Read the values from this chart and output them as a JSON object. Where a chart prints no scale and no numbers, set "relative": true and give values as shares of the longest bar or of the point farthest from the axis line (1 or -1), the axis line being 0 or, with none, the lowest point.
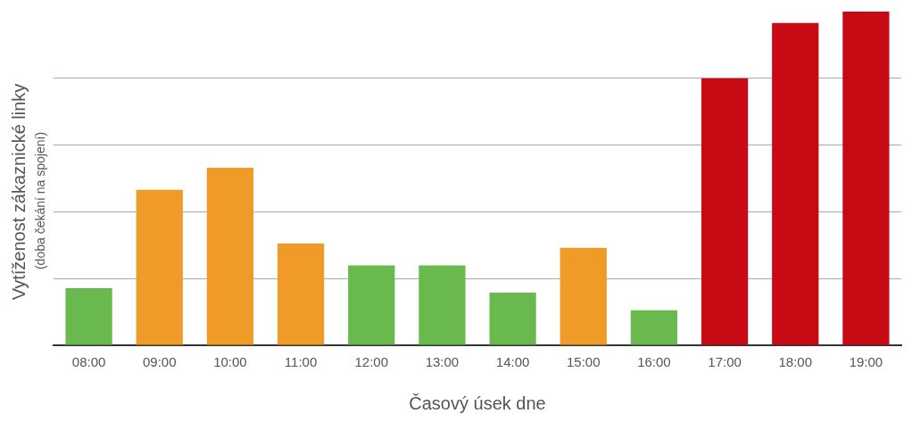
{
  "chart_data": {
    "type": "bar",
    "xlabel": "Časový úsek dne",
    "ylabel": "Vytíženost zákaznické linky",
    "annotations": [
      "(doba čekání na spojení)"
    ],
    "categories": [
      "08:00",
      "09:00",
      "10:00",
      "11:00",
      "12:00",
      "13:00",
      "14:00",
      "15:00",
      "16:00",
      "17:00",
      "18:00",
      "19:00"
    ],
    "values": [
      0.171,
      0.466,
      0.532,
      0.305,
      0.239,
      0.239,
      0.158,
      0.292,
      0.105,
      0.8,
      0.966,
      1
    ],
    "colors": [
      "#6ab94f",
      "#f09a28",
      "#f09a28",
      "#f09a28",
      "#6ab94f",
      "#6ab94f",
      "#6ab94f",
      "#f09a28",
      "#6ab94f",
      "#c80a15",
      "#c80a15",
      "#c80a15"
    ],
    "relative": true,
    "grid": "y",
    "legend": false
  }
}
